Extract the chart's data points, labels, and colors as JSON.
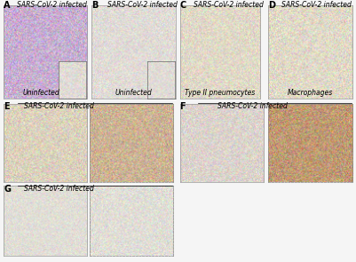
{
  "figure_bg": "#f5f5f5",
  "panel_label_fontsize": 7,
  "title_fontsize": 5.5,
  "sub_fontsize": 5.5,
  "title_A": "SARS-CoV-2 infected",
  "title_B": "SARS-CoV-2 infected",
  "title_C": "SARS-CoV-2 infected",
  "title_D": "SARS-CoV-2 infected",
  "title_E": "SARS-CoV-2 infected",
  "title_F": "SARS-CoV-2 infected",
  "title_G": "SARS-CoV-2 infected",
  "sub_A": "Uninfected",
  "sub_B": "Uninfected",
  "sub_C": "Type II pneumocytes",
  "sub_D": "Macrophages",
  "color_A": [
    0.78,
    0.68,
    0.82
  ],
  "color_B": [
    0.88,
    0.86,
    0.84
  ],
  "color_C": [
    0.88,
    0.85,
    0.78
  ],
  "color_D": [
    0.88,
    0.85,
    0.78
  ],
  "color_E1": [
    0.86,
    0.82,
    0.74
  ],
  "color_E2": [
    0.8,
    0.7,
    0.58
  ],
  "color_F1": [
    0.86,
    0.83,
    0.8
  ],
  "color_F2": [
    0.75,
    0.6,
    0.45
  ],
  "color_G1": [
    0.88,
    0.87,
    0.84
  ],
  "color_G2": [
    0.88,
    0.87,
    0.84
  ]
}
